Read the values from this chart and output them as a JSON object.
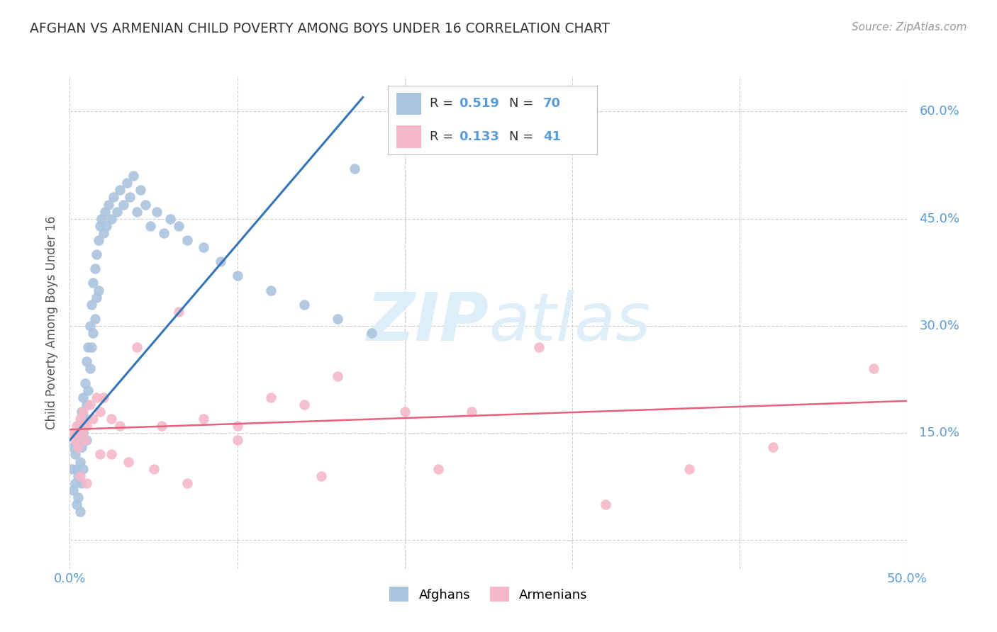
{
  "title": "AFGHAN VS ARMENIAN CHILD POVERTY AMONG BOYS UNDER 16 CORRELATION CHART",
  "source": "Source: ZipAtlas.com",
  "ylabel": "Child Poverty Among Boys Under 16",
  "xlim": [
    0.0,
    0.5
  ],
  "ylim": [
    -0.04,
    0.65
  ],
  "yticks": [
    0.0,
    0.15,
    0.3,
    0.45,
    0.6
  ],
  "ytick_labels_right": [
    "",
    "15.0%",
    "30.0%",
    "45.0%",
    "60.0%"
  ],
  "xticks": [
    0.0,
    0.1,
    0.2,
    0.3,
    0.4,
    0.5
  ],
  "xtick_labels": [
    "0.0%",
    "",
    "",
    "",
    "",
    "50.0%"
  ],
  "legend_r1": "0.519",
  "legend_n1": "70",
  "legend_r2": "0.133",
  "legend_n2": "41",
  "afghan_color": "#aac4de",
  "armenian_color": "#f5b8c8",
  "afghan_line_color": "#3575b5",
  "armenian_line_color": "#e8607a",
  "title_color": "#333333",
  "axis_label_color": "#5b9bd5",
  "source_color": "#999999",
  "grid_color": "#cccccc",
  "background_color": "#ffffff",
  "watermark_color": "#ddeef8",
  "ylabel_color": "#555555",
  "legend_text_color": "#333333",
  "afghans_x": [
    0.001,
    0.002,
    0.002,
    0.003,
    0.003,
    0.004,
    0.004,
    0.004,
    0.005,
    0.005,
    0.005,
    0.006,
    0.006,
    0.006,
    0.007,
    0.007,
    0.007,
    0.008,
    0.008,
    0.008,
    0.009,
    0.009,
    0.01,
    0.01,
    0.01,
    0.011,
    0.011,
    0.012,
    0.012,
    0.013,
    0.013,
    0.014,
    0.014,
    0.015,
    0.015,
    0.016,
    0.016,
    0.017,
    0.017,
    0.018,
    0.019,
    0.02,
    0.021,
    0.022,
    0.023,
    0.025,
    0.026,
    0.028,
    0.03,
    0.032,
    0.034,
    0.036,
    0.038,
    0.04,
    0.042,
    0.045,
    0.048,
    0.052,
    0.056,
    0.06,
    0.065,
    0.07,
    0.08,
    0.09,
    0.1,
    0.12,
    0.14,
    0.16,
    0.18,
    0.17
  ],
  "afghans_y": [
    0.1,
    0.13,
    0.07,
    0.12,
    0.08,
    0.15,
    0.1,
    0.05,
    0.14,
    0.09,
    0.06,
    0.16,
    0.11,
    0.04,
    0.18,
    0.13,
    0.08,
    0.2,
    0.15,
    0.1,
    0.22,
    0.17,
    0.25,
    0.19,
    0.14,
    0.27,
    0.21,
    0.3,
    0.24,
    0.33,
    0.27,
    0.36,
    0.29,
    0.38,
    0.31,
    0.4,
    0.34,
    0.42,
    0.35,
    0.44,
    0.45,
    0.43,
    0.46,
    0.44,
    0.47,
    0.45,
    0.48,
    0.46,
    0.49,
    0.47,
    0.5,
    0.48,
    0.51,
    0.46,
    0.49,
    0.47,
    0.44,
    0.46,
    0.43,
    0.45,
    0.44,
    0.42,
    0.41,
    0.39,
    0.37,
    0.35,
    0.33,
    0.31,
    0.29,
    0.52
  ],
  "afghans_line_x": [
    0.0,
    0.175
  ],
  "afghans_line_y": [
    0.14,
    0.62
  ],
  "armenians_x": [
    0.002,
    0.003,
    0.004,
    0.005,
    0.006,
    0.007,
    0.008,
    0.009,
    0.01,
    0.012,
    0.014,
    0.016,
    0.018,
    0.02,
    0.025,
    0.03,
    0.04,
    0.055,
    0.065,
    0.08,
    0.1,
    0.12,
    0.14,
    0.16,
    0.2,
    0.24,
    0.28,
    0.32,
    0.37,
    0.42,
    0.006,
    0.01,
    0.018,
    0.025,
    0.035,
    0.05,
    0.07,
    0.1,
    0.15,
    0.22,
    0.48
  ],
  "armenians_y": [
    0.15,
    0.14,
    0.16,
    0.13,
    0.17,
    0.15,
    0.18,
    0.14,
    0.16,
    0.19,
    0.17,
    0.2,
    0.18,
    0.2,
    0.17,
    0.16,
    0.27,
    0.16,
    0.32,
    0.17,
    0.16,
    0.2,
    0.19,
    0.23,
    0.18,
    0.18,
    0.27,
    0.05,
    0.1,
    0.13,
    0.09,
    0.08,
    0.12,
    0.12,
    0.11,
    0.1,
    0.08,
    0.14,
    0.09,
    0.1,
    0.24
  ],
  "armenians_line_x": [
    0.0,
    0.5
  ],
  "armenians_line_y": [
    0.155,
    0.195
  ]
}
